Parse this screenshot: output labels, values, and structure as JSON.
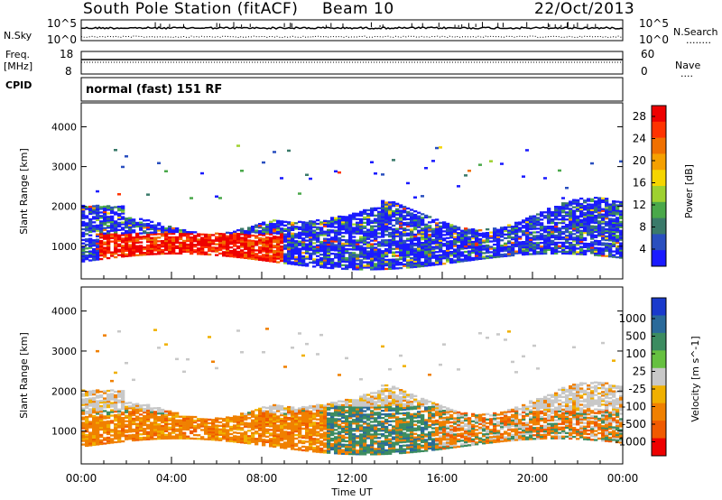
{
  "header": {
    "station": "South Pole Station (fitACF)",
    "beam": "Beam 10",
    "date": "22/Oct/2013"
  },
  "noise_panel": {
    "left_label": "N.Sky",
    "left_ticks": [
      "10^5",
      "10^0"
    ],
    "right_ticks": [
      "10^5",
      "10^0"
    ],
    "right_label": "N.Search",
    "right_legend": "........"
  },
  "freq_panel": {
    "left_label_1": "Freq.",
    "left_label_2": "[MHz]",
    "left_ticks": [
      "18",
      "8"
    ],
    "right_ticks": [
      "60",
      "0"
    ],
    "right_label": "Nave",
    "right_legend": "...."
  },
  "cpid_panel": {
    "left_label": "CPID",
    "text": "normal (fast) 151 RF"
  },
  "chart_data": [
    {
      "type": "heatmap",
      "name": "power",
      "ylabel": "Slant Range [km]",
      "y_ticks": [
        "1000",
        "2000",
        "3000",
        "4000"
      ],
      "ylim": [
        180,
        4600
      ],
      "colorbar_label": "Power [dB]",
      "colorbar_ticks": [
        "4",
        "8",
        "12",
        "16",
        "20",
        "24",
        "28"
      ],
      "colorbar_colors": [
        "#1a1aff",
        "#2a4fbf",
        "#3a7a6a",
        "#4aa84a",
        "#9ed130",
        "#f5d500",
        "#f5a000",
        "#f07000",
        "#ff3300",
        "#ee0000"
      ],
      "x_ticks": [
        "00:00",
        "04:00",
        "08:00",
        "12:00",
        "16:00",
        "20:00",
        "00:00"
      ]
    },
    {
      "type": "heatmap",
      "name": "velocity",
      "ylabel": "Slant Range [km]",
      "y_ticks": [
        "1000",
        "2000",
        "3000",
        "4000"
      ],
      "ylim": [
        180,
        4600
      ],
      "colorbar_label": "Velocity [m s^-1]",
      "colorbar_ticks": [
        "1000",
        "500",
        "100",
        "25",
        "-25",
        "-100",
        "-500",
        "-1000"
      ],
      "colorbar_colors": [
        "#1a3acc",
        "#2a6a9a",
        "#3c8c60",
        "#66c040",
        "#c8c8c8",
        "#f0b000",
        "#f08000",
        "#f05a00",
        "#ee0000"
      ],
      "x_ticks": [
        "00:00",
        "04:00",
        "08:00",
        "12:00",
        "16:00",
        "20:00",
        "00:00"
      ],
      "xlabel": "Time UT"
    }
  ]
}
